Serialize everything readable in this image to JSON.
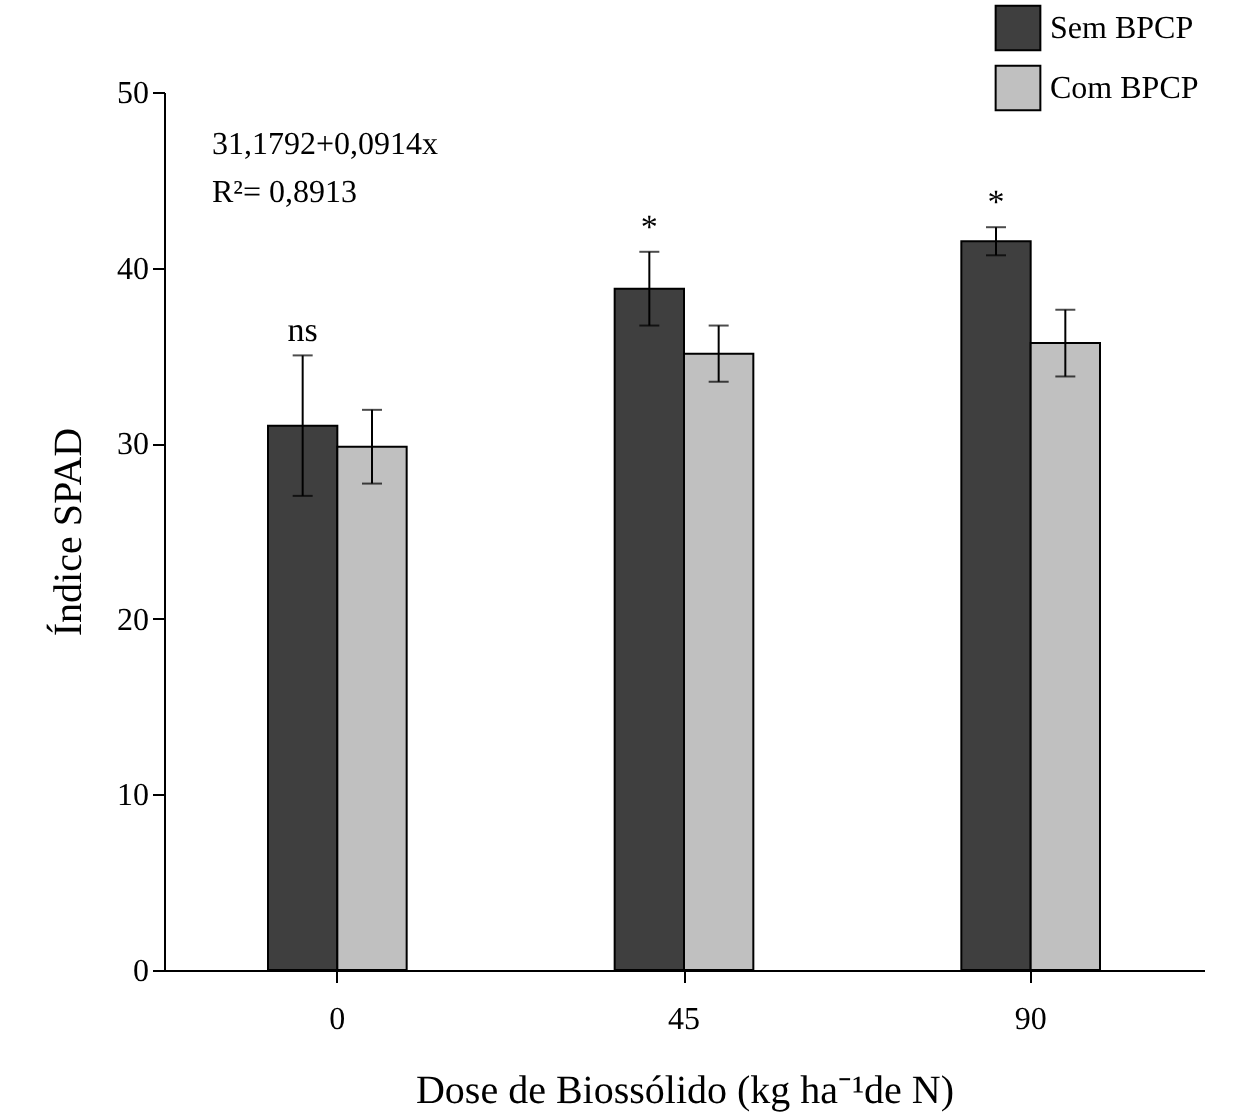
{
  "chart_data": {
    "type": "bar",
    "xlabel": "Dose de Biossólido (kg ha⁻¹de N)",
    "ylabel": "Índice SPAD",
    "categories": [
      "0",
      "45",
      "90"
    ],
    "series": [
      {
        "name": "Sem BPCP",
        "color": "#3f3f3f",
        "values": [
          31.0,
          38.8,
          41.5
        ],
        "errors": [
          4.0,
          2.1,
          0.8
        ]
      },
      {
        "name": "Com BPCP",
        "color": "#c0c0c0",
        "values": [
          29.8,
          35.1,
          35.7
        ],
        "errors": [
          2.1,
          1.6,
          1.9
        ]
      }
    ],
    "ylim": [
      0,
      50
    ],
    "yticks": [
      0,
      10,
      20,
      30,
      40,
      50
    ],
    "grid": false,
    "legend": "top right",
    "annotations": [
      "31,1792+0,0914x",
      "R²= 0,8913",
      {
        "text": "ns",
        "x": "0",
        "y": 31.0
      },
      {
        "text": "*",
        "x": "45",
        "y": 38.8
      },
      {
        "text": "*",
        "x": "90",
        "y": 41.5
      }
    ]
  }
}
